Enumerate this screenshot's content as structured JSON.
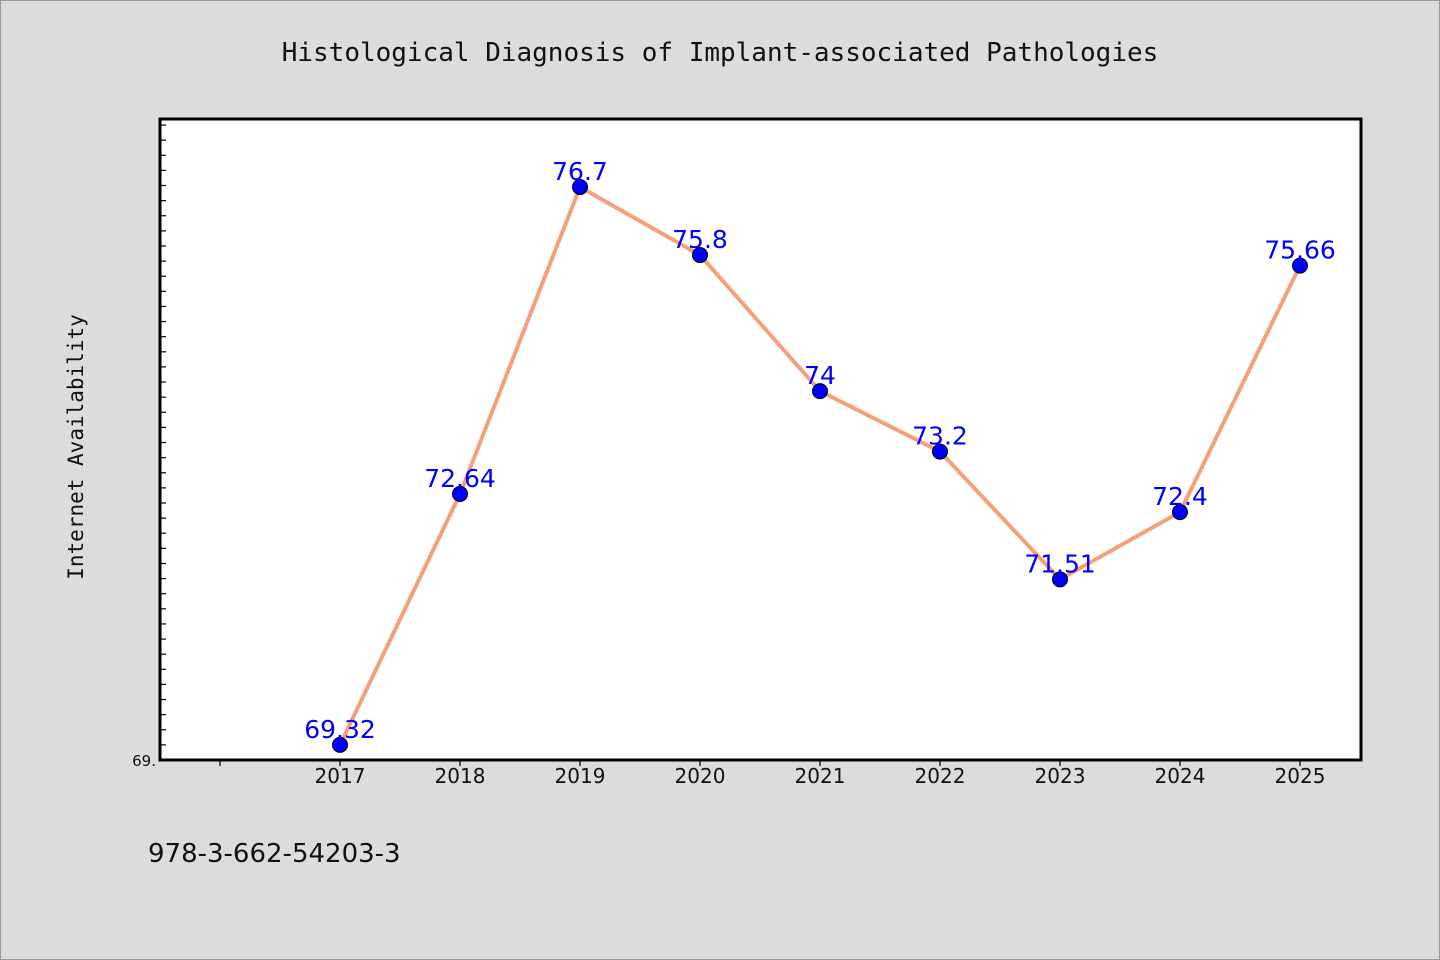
{
  "caption": "978-3-662-54203-3",
  "chart_data": {
    "type": "line",
    "title": "Histological Diagnosis of Implant-associated Pathologies",
    "xlabel": "",
    "ylabel": "Internet Availability",
    "categories": [
      "2017",
      "2018",
      "2019",
      "2020",
      "2021",
      "2022",
      "2023",
      "2024",
      "2025"
    ],
    "series": [
      {
        "values": [
          69.32,
          72.64,
          76.7,
          75.8,
          74,
          73.2,
          71.51,
          72.4,
          75.66
        ]
      }
    ],
    "data_labels": [
      "69.32",
      "72.64",
      "76.7",
      "75.8",
      "74",
      "73.2",
      "71.51",
      "72.4",
      "75.66"
    ],
    "ylim": [
      69.12,
      77.6
    ],
    "y_tick_label": "69.",
    "grid": false,
    "line_color": "#f4a07a",
    "marker_color": "#0000ff",
    "label_color": "#0000ff",
    "background_color": "#dcdcdc",
    "plot_background": "#ffffff"
  }
}
